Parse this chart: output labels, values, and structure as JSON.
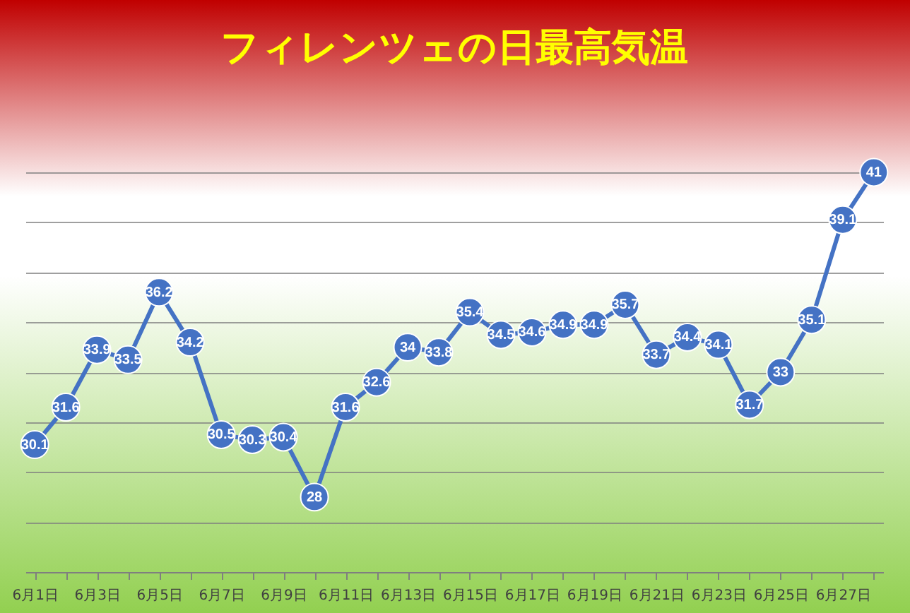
{
  "chart_data": {
    "type": "line",
    "title": "フィレンツェの日最高気温",
    "categories": [
      "6月1日",
      null,
      "6月3日",
      null,
      "6月5日",
      null,
      "6月7日",
      null,
      "6月9日",
      null,
      "6月11日",
      null,
      "6月13日",
      null,
      "6月15日",
      null,
      "6月17日",
      null,
      "6月19日",
      null,
      "6月21日",
      null,
      "6月23日",
      null,
      "6月25日",
      null,
      "6月27日",
      null
    ],
    "series": [
      {
        "color": "#4472c4",
        "values": [
          30.1,
          31.6,
          33.9,
          33.5,
          36.2,
          34.2,
          30.5,
          30.3,
          30.4,
          28,
          31.6,
          32.6,
          34,
          33.8,
          35.4,
          34.5,
          34.6,
          34.9,
          34.9,
          35.7,
          33.7,
          34.4,
          34.1,
          31.7,
          33,
          35.1,
          39.1,
          41
        ]
      }
    ],
    "ylim": [
      25,
      41
    ],
    "yticks": [
      25,
      27,
      29,
      31,
      33,
      35,
      37,
      39,
      41
    ],
    "grid": "y",
    "tick_labels": "x",
    "marker": "circle",
    "line_style": "solid",
    "data_labels": true
  }
}
